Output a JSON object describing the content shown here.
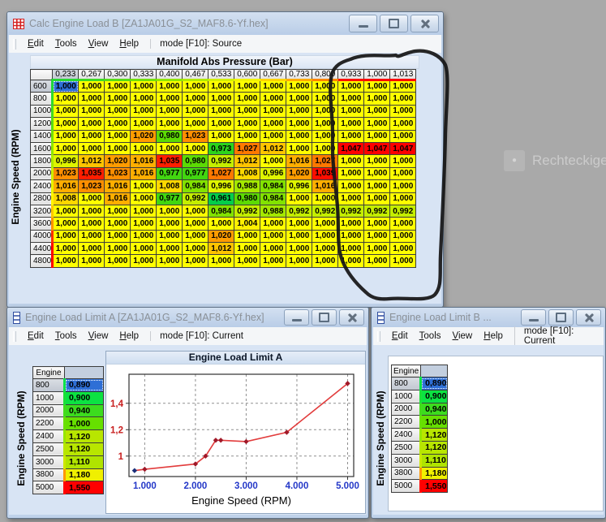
{
  "desktop": {
    "background": "#a9a9a9",
    "ghost_tool": {
      "label": "Rechteckige",
      "icon_glyph": "●"
    }
  },
  "windows": {
    "main": {
      "title": "Calc Engine Load B [ZA1JA01G_S2_MAF8.6-Yf.hex]",
      "menu": [
        "Edit",
        "Tools",
        "View",
        "Help"
      ],
      "mode": "mode [F10]: Source",
      "map_title": "Manifold Abs Pressure (Bar)",
      "y_axis": "Engine Speed (RPM)",
      "table": {
        "col_headers": [
          "0,233",
          "0,267",
          "0,300",
          "0,333",
          "0,400",
          "0,467",
          "0,533",
          "0,600",
          "0,667",
          "0,733",
          "0,800",
          "0,933",
          "1,000",
          "1,013"
        ],
        "col_stripe_colors": [
          "#26d832",
          "#3eda24",
          "#58dc16",
          "#74e008",
          "#92e600",
          "#b2ea00",
          "#d4f000",
          "#f2f400",
          "#ffd400",
          "#ffaa00",
          "#ff8400",
          "#ff1000",
          "#ff0000",
          "#ff0000"
        ],
        "row_headers": [
          "600",
          "800",
          "1000",
          "1200",
          "1400",
          "1600",
          "1800",
          "2000",
          "2400",
          "2800",
          "3200",
          "3600",
          "4000",
          "4400",
          "4800"
        ],
        "row_stripe_colors": [
          "#20d83a",
          "#30da2c",
          "#44dc1e",
          "#5ade12",
          "#74e206",
          "#90e600",
          "#aeea00",
          "#ccee00",
          "#e8f200",
          "#fff400",
          "#ffc800",
          "#ff9400",
          "#ff3000",
          "#ff0000",
          "#ff0000"
        ],
        "values": [
          [
            "1,000",
            "1,000",
            "1,000",
            "1,000",
            "1,000",
            "1,000",
            "1,000",
            "1,000",
            "1,000",
            "1,000",
            "1,000",
            "1,000",
            "1,000",
            "1,000"
          ],
          [
            "1,000",
            "1,000",
            "1,000",
            "1,000",
            "1,000",
            "1,000",
            "1,000",
            "1,000",
            "1,000",
            "1,000",
            "1,000",
            "1,000",
            "1,000",
            "1,000"
          ],
          [
            "1,000",
            "1,000",
            "1,000",
            "1,000",
            "1,000",
            "1,000",
            "1,000",
            "1,000",
            "1,000",
            "1,000",
            "1,000",
            "1,000",
            "1,000",
            "1,000"
          ],
          [
            "1,000",
            "1,000",
            "1,000",
            "1,000",
            "1,000",
            "1,000",
            "1,000",
            "1,000",
            "1,000",
            "1,000",
            "1,000",
            "1,000",
            "1,000",
            "1,000"
          ],
          [
            "1,000",
            "1,000",
            "1,000",
            "1,020",
            "0,980",
            "1,023",
            "1,000",
            "1,000",
            "1,000",
            "1,000",
            "1,000",
            "1,000",
            "1,000",
            "1,000"
          ],
          [
            "1,000",
            "1,000",
            "1,000",
            "1,000",
            "1,000",
            "1,000",
            "0,973",
            "1,027",
            "1,012",
            "1,000",
            "1,000",
            "1,047",
            "1,047",
            "1,047"
          ],
          [
            "0,996",
            "1,012",
            "1,020",
            "1,016",
            "1,035",
            "0,980",
            "0,992",
            "1,012",
            "1,000",
            "1,016",
            "1,027",
            "1,000",
            "1,000",
            "1,000"
          ],
          [
            "1,023",
            "1,035",
            "1,023",
            "1,016",
            "0,977",
            "0,977",
            "1,027",
            "1,008",
            "0,996",
            "1,020",
            "1,039",
            "1,000",
            "1,000",
            "1,000"
          ],
          [
            "1,016",
            "1,023",
            "1,016",
            "1,000",
            "1,008",
            "0,984",
            "0,996",
            "0,988",
            "0,984",
            "0,996",
            "1,016",
            "1,000",
            "1,000",
            "1,000"
          ],
          [
            "1,008",
            "1,000",
            "1,016",
            "1,000",
            "0,977",
            "0,992",
            "0,961",
            "0,980",
            "0,984",
            "1,000",
            "1,000",
            "1,000",
            "1,000",
            "1,000"
          ],
          [
            "1,000",
            "1,000",
            "1,000",
            "1,000",
            "1,000",
            "1,000",
            "0,984",
            "0,992",
            "0,988",
            "0,992",
            "0,992",
            "0,992",
            "0,992",
            "0,992"
          ],
          [
            "1,000",
            "1,000",
            "1,000",
            "1,000",
            "1,000",
            "1,000",
            "1,000",
            "1,004",
            "1,000",
            "1,000",
            "1,000",
            "1,000",
            "1,000",
            "1,000"
          ],
          [
            "1,000",
            "1,000",
            "1,000",
            "1,000",
            "1,000",
            "1,000",
            "1,020",
            "1,000",
            "1,000",
            "1,000",
            "1,000",
            "1,000",
            "1,000",
            "1,000"
          ],
          [
            "1,000",
            "1,000",
            "1,000",
            "1,000",
            "1,000",
            "1,000",
            "1,012",
            "1,000",
            "1,000",
            "1,000",
            "1,000",
            "1,000",
            "1,000",
            "1,000"
          ],
          [
            "1,000",
            "1,000",
            "1,000",
            "1,000",
            "1,000",
            "1,000",
            "1,000",
            "1,000",
            "1,000",
            "1,000",
            "1,000",
            "1,000",
            "1,000",
            "1,000"
          ]
        ],
        "value_colors": {
          "1,000": "#ffff00",
          "1,004": "#fff000",
          "1,008": "#ffd800",
          "1,012": "#ffc400",
          "1,016": "#ffae00",
          "1,020": "#ff9c00",
          "1,023": "#ff8e00",
          "1,027": "#ff7800",
          "1,035": "#ff1e00",
          "1,039": "#ff0e00",
          "1,047": "#ff0000",
          "0,996": "#dff400",
          "0,992": "#c4ee00",
          "0,988": "#a4e800",
          "0,984": "#82e200",
          "0,980": "#5cda04",
          "0,977": "#42d610",
          "0,973": "#2cd41c",
          "0,961": "#04ce4a"
        },
        "selected": {
          "row": 0,
          "col": 0,
          "color": "#2e6fd6"
        }
      }
    },
    "a": {
      "title": "Engine Load Limit A [ZA1JA01G_S2_MAF8.6-Yf.hex]",
      "menu": [
        "Edit",
        "Tools",
        "View",
        "Help"
      ],
      "mode": "mode [F10]: Current",
      "y_axis": "Engine Speed (RPM)",
      "table": {
        "header": "Engine",
        "row_headers": [
          "800",
          "1000",
          "2000",
          "2200",
          "2400",
          "2500",
          "3000",
          "3800",
          "5000"
        ],
        "row_stripe_colors": [
          "#0ce248",
          "#1ce038",
          "#44dc1c",
          "#6ae004",
          "#98e600",
          "#b8e600",
          "#cce800",
          "#ff9800",
          "#ff0000"
        ],
        "values": [
          "0,890",
          "0,900",
          "0,940",
          "1,000",
          "1,120",
          "1,120",
          "1,110",
          "1,180",
          "1,550"
        ],
        "value_colors": {
          "0,890": "#00e450",
          "0,900": "#0ce242",
          "0,940": "#3cdc1e",
          "1,000": "#66e000",
          "1,110": "#b0e400",
          "1,120": "#b8e600",
          "1,180": "#f0f000",
          "1,550": "#ff0000"
        },
        "selected_row": 0,
        "selected_color": "#2e6fd6"
      }
    },
    "b": {
      "title": "Engine Load Limit B ...",
      "menu": [
        "Edit",
        "Tools",
        "View",
        "Help"
      ],
      "mode": "mode [F10]: Current",
      "y_axis": "Engine Speed (RPM)",
      "table": {
        "header": "Engine",
        "row_headers": [
          "800",
          "1000",
          "2000",
          "2200",
          "2400",
          "2500",
          "3000",
          "3800",
          "5000"
        ],
        "row_stripe_colors": [
          "#0ce248",
          "#1ce038",
          "#44dc1c",
          "#6ae004",
          "#98e600",
          "#b8e600",
          "#cce800",
          "#ff9800",
          "#ff0000"
        ],
        "values": [
          "0,890",
          "0,900",
          "0,940",
          "1,000",
          "1,120",
          "1,120",
          "1,110",
          "1,180",
          "1,550"
        ],
        "value_colors": {
          "0,890": "#00e450",
          "0,900": "#0ce242",
          "0,940": "#3cdc1e",
          "1,000": "#66e000",
          "1,110": "#b0e400",
          "1,120": "#b8e600",
          "1,180": "#f0f000",
          "1,550": "#ff0000"
        },
        "selected_row": 0,
        "selected_color": "#2e6fd6"
      }
    }
  },
  "chart_data": {
    "type": "line",
    "title": "Engine Load Limit A",
    "xlabel": "Engine Speed (RPM)",
    "x": [
      800,
      1000,
      2000,
      2200,
      2400,
      2500,
      3000,
      3800,
      5000
    ],
    "y": [
      0.89,
      0.9,
      0.94,
      1.0,
      1.12,
      1.12,
      1.11,
      1.18,
      1.55
    ],
    "x_ticks": [
      "1.000",
      "2.000",
      "3.000",
      "4.000",
      "5.000"
    ],
    "x_tick_values": [
      1000,
      2000,
      3000,
      4000,
      5000
    ],
    "y_ticks": [
      "1",
      "1,2",
      "1,4"
    ],
    "y_tick_values": [
      1.0,
      1.2,
      1.4
    ],
    "xlim": [
      690,
      5120
    ],
    "ylim": [
      0.845,
      1.62
    ],
    "grid": true,
    "legend": "none",
    "line_color": "#e23c3c",
    "marker_color": "#a01828",
    "selected_marker_color": "#1b2f7a",
    "x_tick_color": "#2438c8",
    "y_tick_color": "#c81e1e"
  }
}
